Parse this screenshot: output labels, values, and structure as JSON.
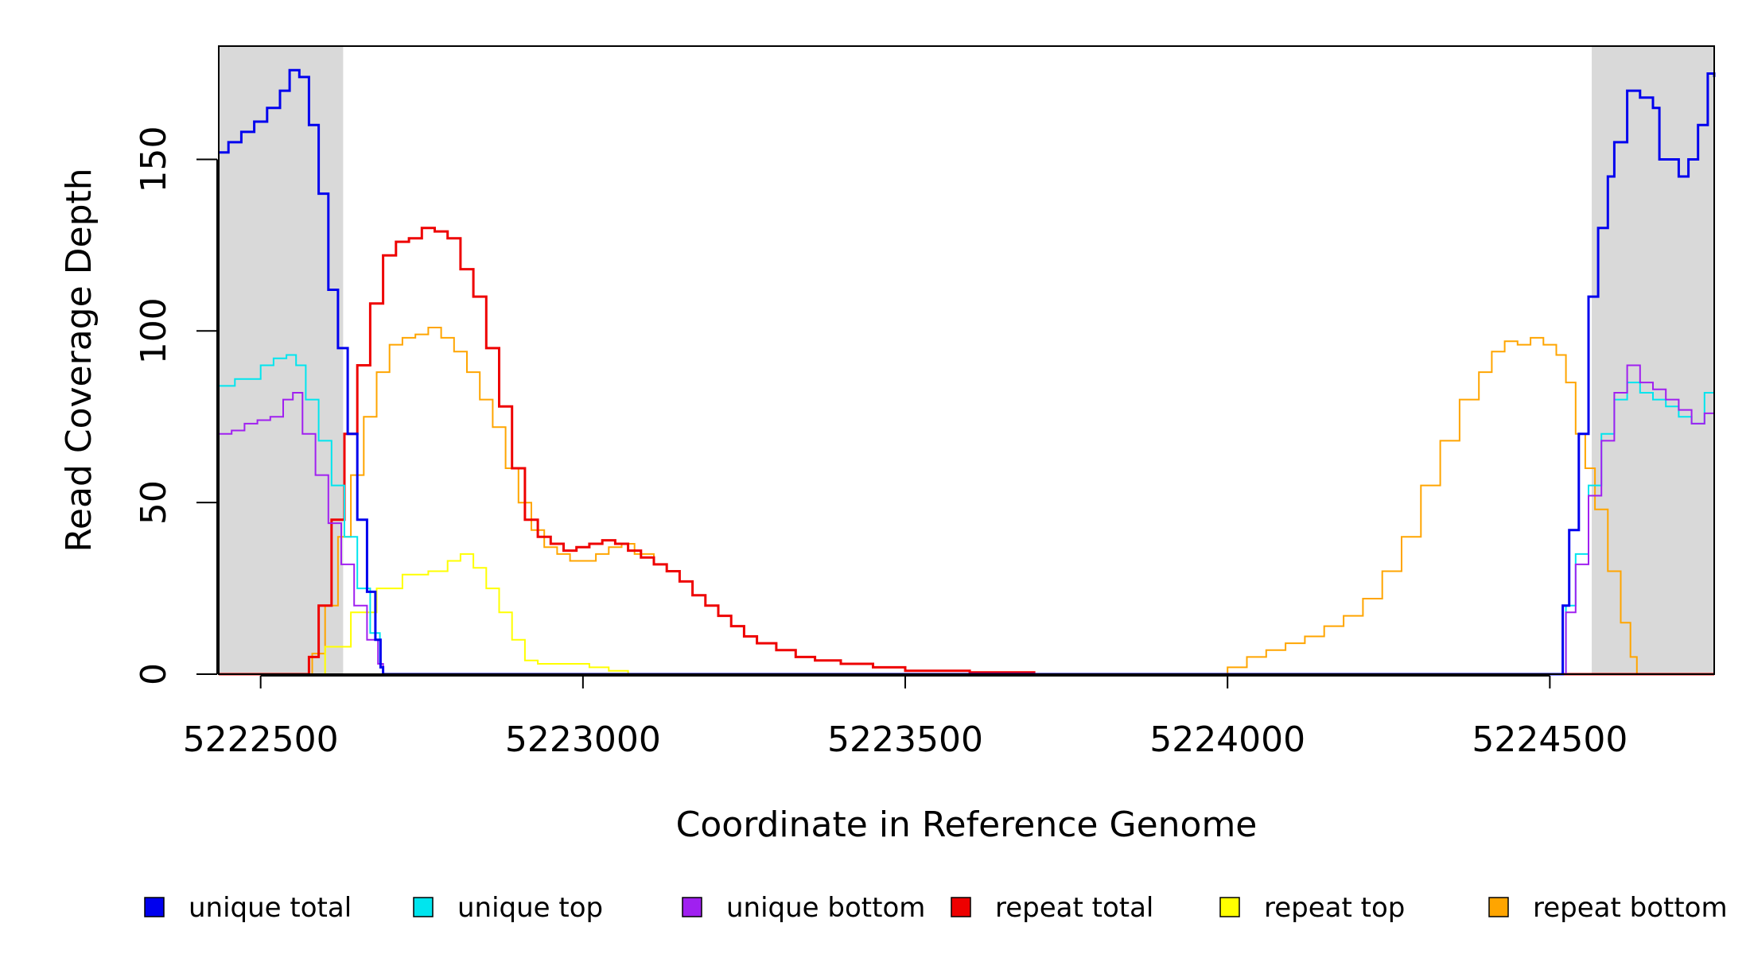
{
  "chart_data": {
    "type": "line",
    "title": "",
    "xlabel": "Coordinate in Reference Genome",
    "ylabel": "Read Coverage Depth",
    "xlim": [
      5222435,
      5224755
    ],
    "ylim": [
      0,
      183
    ],
    "x_ticks": [
      5222500,
      5223000,
      5223500,
      5224000,
      5224500
    ],
    "x_tick_labels": [
      "5222500",
      "5223000",
      "5223500",
      "5224000",
      "5224500"
    ],
    "y_ticks": [
      0,
      50,
      100,
      150
    ],
    "y_tick_labels": [
      "0",
      "50",
      "100",
      "150"
    ],
    "shaded_regions": [
      [
        5222435,
        5222628
      ],
      [
        5224565,
        5224755
      ]
    ],
    "shade_color": "#d9d9d9",
    "grid": false,
    "legend_position": "bottom",
    "series": [
      {
        "name": "unique total",
        "color": "#0000ee",
        "width": 3,
        "points": [
          [
            5222435,
            152
          ],
          [
            5222450,
            155
          ],
          [
            5222470,
            158
          ],
          [
            5222490,
            161
          ],
          [
            5222510,
            165
          ],
          [
            5222530,
            170
          ],
          [
            5222545,
            176
          ],
          [
            5222560,
            174
          ],
          [
            5222575,
            160
          ],
          [
            5222590,
            140
          ],
          [
            5222605,
            112
          ],
          [
            5222620,
            95
          ],
          [
            5222635,
            70
          ],
          [
            5222650,
            45
          ],
          [
            5222665,
            24
          ],
          [
            5222678,
            10
          ],
          [
            5222686,
            2
          ],
          [
            5222690,
            0
          ],
          [
            5224515,
            0
          ],
          [
            5224520,
            20
          ],
          [
            5224530,
            42
          ],
          [
            5224545,
            70
          ],
          [
            5224560,
            110
          ],
          [
            5224575,
            130
          ],
          [
            5224590,
            145
          ],
          [
            5224600,
            155
          ],
          [
            5224620,
            170
          ],
          [
            5224640,
            168
          ],
          [
            5224660,
            165
          ],
          [
            5224670,
            150
          ],
          [
            5224685,
            150
          ],
          [
            5224700,
            145
          ],
          [
            5224715,
            150
          ],
          [
            5224730,
            160
          ],
          [
            5224745,
            175
          ],
          [
            5224755,
            174
          ]
        ]
      },
      {
        "name": "unique top",
        "color": "#00e5ee",
        "width": 2,
        "points": [
          [
            5222435,
            84
          ],
          [
            5222460,
            86
          ],
          [
            5222480,
            86
          ],
          [
            5222500,
            90
          ],
          [
            5222520,
            92
          ],
          [
            5222540,
            93
          ],
          [
            5222555,
            90
          ],
          [
            5222570,
            80
          ],
          [
            5222590,
            68
          ],
          [
            5222610,
            55
          ],
          [
            5222630,
            40
          ],
          [
            5222650,
            25
          ],
          [
            5222670,
            12
          ],
          [
            5222685,
            3
          ],
          [
            5222690,
            0
          ],
          [
            5224515,
            0
          ],
          [
            5224525,
            20
          ],
          [
            5224540,
            35
          ],
          [
            5224560,
            55
          ],
          [
            5224580,
            70
          ],
          [
            5224600,
            80
          ],
          [
            5224620,
            85
          ],
          [
            5224640,
            82
          ],
          [
            5224660,
            80
          ],
          [
            5224680,
            78
          ],
          [
            5224700,
            75
          ],
          [
            5224720,
            73
          ],
          [
            5224740,
            82
          ],
          [
            5224755,
            88
          ]
        ]
      },
      {
        "name": "unique bottom",
        "color": "#a020f0",
        "width": 2,
        "points": [
          [
            5222435,
            70
          ],
          [
            5222455,
            71
          ],
          [
            5222475,
            73
          ],
          [
            5222495,
            74
          ],
          [
            5222515,
            75
          ],
          [
            5222535,
            80
          ],
          [
            5222550,
            82
          ],
          [
            5222565,
            70
          ],
          [
            5222585,
            58
          ],
          [
            5222605,
            44
          ],
          [
            5222625,
            32
          ],
          [
            5222645,
            20
          ],
          [
            5222665,
            10
          ],
          [
            5222682,
            3
          ],
          [
            5222690,
            0
          ],
          [
            5224515,
            0
          ],
          [
            5224525,
            18
          ],
          [
            5224540,
            32
          ],
          [
            5224560,
            52
          ],
          [
            5224580,
            68
          ],
          [
            5224600,
            82
          ],
          [
            5224620,
            90
          ],
          [
            5224640,
            85
          ],
          [
            5224660,
            83
          ],
          [
            5224680,
            80
          ],
          [
            5224700,
            77
          ],
          [
            5224720,
            73
          ],
          [
            5224740,
            76
          ],
          [
            5224755,
            88
          ]
        ]
      },
      {
        "name": "repeat total",
        "color": "#ee0000",
        "width": 3,
        "points": [
          [
            5222435,
            0
          ],
          [
            5222565,
            0
          ],
          [
            5222575,
            5
          ],
          [
            5222590,
            20
          ],
          [
            5222610,
            45
          ],
          [
            5222630,
            70
          ],
          [
            5222650,
            90
          ],
          [
            5222670,
            108
          ],
          [
            5222690,
            122
          ],
          [
            5222710,
            126
          ],
          [
            5222730,
            127
          ],
          [
            5222750,
            130
          ],
          [
            5222770,
            129
          ],
          [
            5222790,
            127
          ],
          [
            5222810,
            118
          ],
          [
            5222830,
            110
          ],
          [
            5222850,
            95
          ],
          [
            5222870,
            78
          ],
          [
            5222890,
            60
          ],
          [
            5222910,
            45
          ],
          [
            5222930,
            40
          ],
          [
            5222950,
            38
          ],
          [
            5222970,
            36
          ],
          [
            5222990,
            37
          ],
          [
            5223010,
            38
          ],
          [
            5223030,
            39
          ],
          [
            5223050,
            38
          ],
          [
            5223070,
            36
          ],
          [
            5223090,
            34
          ],
          [
            5223110,
            32
          ],
          [
            5223130,
            30
          ],
          [
            5223150,
            27
          ],
          [
            5223170,
            23
          ],
          [
            5223190,
            20
          ],
          [
            5223210,
            17
          ],
          [
            5223230,
            14
          ],
          [
            5223250,
            11
          ],
          [
            5223270,
            9
          ],
          [
            5223300,
            7
          ],
          [
            5223330,
            5
          ],
          [
            5223360,
            4
          ],
          [
            5223400,
            3
          ],
          [
            5223450,
            2
          ],
          [
            5223500,
            1
          ],
          [
            5223600,
            0.5
          ],
          [
            5223700,
            0
          ],
          [
            5224755,
            0
          ]
        ]
      },
      {
        "name": "repeat top",
        "color": "#ffff00",
        "width": 2,
        "points": [
          [
            5222435,
            0
          ],
          [
            5222570,
            0
          ],
          [
            5222600,
            8
          ],
          [
            5222640,
            18
          ],
          [
            5222680,
            25
          ],
          [
            5222720,
            29
          ],
          [
            5222760,
            30
          ],
          [
            5222790,
            33
          ],
          [
            5222810,
            35
          ],
          [
            5222830,
            31
          ],
          [
            5222850,
            25
          ],
          [
            5222870,
            18
          ],
          [
            5222890,
            10
          ],
          [
            5222910,
            4
          ],
          [
            5222930,
            3
          ],
          [
            5222960,
            3
          ],
          [
            5222990,
            3
          ],
          [
            5223010,
            2
          ],
          [
            5223040,
            1
          ],
          [
            5223070,
            0
          ],
          [
            5224755,
            0
          ]
        ]
      },
      {
        "name": "repeat bottom",
        "color": "#ffa500",
        "width": 2,
        "points": [
          [
            5222435,
            0
          ],
          [
            5222565,
            0
          ],
          [
            5222580,
            6
          ],
          [
            5222600,
            20
          ],
          [
            5222620,
            40
          ],
          [
            5222640,
            58
          ],
          [
            5222660,
            75
          ],
          [
            5222680,
            88
          ],
          [
            5222700,
            96
          ],
          [
            5222720,
            98
          ],
          [
            5222740,
            99
          ],
          [
            5222760,
            101
          ],
          [
            5222780,
            98
          ],
          [
            5222800,
            94
          ],
          [
            5222820,
            88
          ],
          [
            5222840,
            80
          ],
          [
            5222860,
            72
          ],
          [
            5222880,
            60
          ],
          [
            5222900,
            50
          ],
          [
            5222920,
            42
          ],
          [
            5222940,
            37
          ],
          [
            5222960,
            35
          ],
          [
            5222980,
            33
          ],
          [
            5223000,
            33
          ],
          [
            5223020,
            35
          ],
          [
            5223040,
            37
          ],
          [
            5223060,
            38
          ],
          [
            5223080,
            35
          ],
          [
            5223110,
            32
          ],
          [
            5223130,
            30
          ],
          [
            5223150,
            27
          ],
          [
            5223170,
            23
          ],
          [
            5223190,
            20
          ],
          [
            5223210,
            17
          ],
          [
            5223230,
            14
          ],
          [
            5223250,
            11
          ],
          [
            5223270,
            9
          ],
          [
            5223300,
            7
          ],
          [
            5223330,
            5
          ],
          [
            5223360,
            4
          ],
          [
            5223400,
            3
          ],
          [
            5223450,
            2
          ],
          [
            5223500,
            1
          ],
          [
            5223600,
            0.5
          ],
          [
            5223700,
            0
          ],
          [
            5223950,
            0
          ],
          [
            5224000,
            2
          ],
          [
            5224030,
            5
          ],
          [
            5224060,
            7
          ],
          [
            5224090,
            9
          ],
          [
            5224120,
            11
          ],
          [
            5224150,
            14
          ],
          [
            5224180,
            17
          ],
          [
            5224210,
            22
          ],
          [
            5224240,
            30
          ],
          [
            5224270,
            40
          ],
          [
            5224300,
            55
          ],
          [
            5224330,
            68
          ],
          [
            5224360,
            80
          ],
          [
            5224390,
            88
          ],
          [
            5224410,
            94
          ],
          [
            5224430,
            97
          ],
          [
            5224450,
            96
          ],
          [
            5224470,
            98
          ],
          [
            5224490,
            96
          ],
          [
            5224510,
            93
          ],
          [
            5224525,
            85
          ],
          [
            5224540,
            70
          ],
          [
            5224555,
            60
          ],
          [
            5224570,
            48
          ],
          [
            5224590,
            30
          ],
          [
            5224610,
            15
          ],
          [
            5224625,
            5
          ],
          [
            5224635,
            0
          ],
          [
            5224755,
            0
          ]
        ]
      }
    ]
  }
}
